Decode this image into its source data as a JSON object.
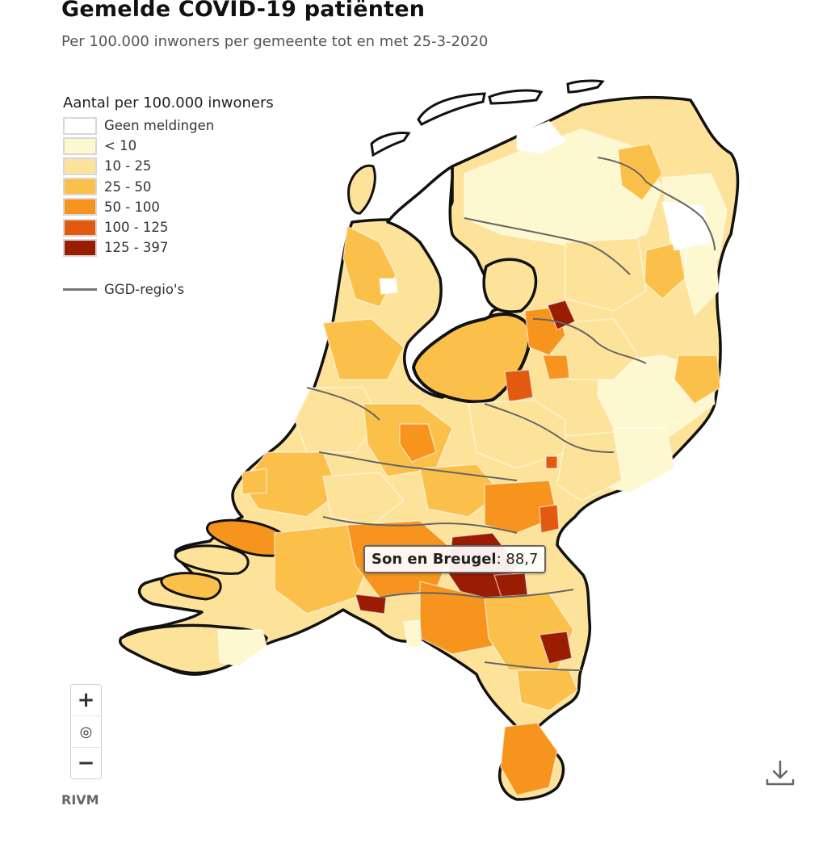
{
  "title": "Gemelde COVID-19 patiënten",
  "subtitle": "Per 100.000 inwoners per gemeente tot en met 25-3-2020",
  "legend": {
    "title": "Aantal per 100.000 inwoners",
    "items": [
      {
        "label": "Geen meldingen",
        "color": "#ffffff"
      },
      {
        "label": "< 10",
        "color": "#fdf8d0"
      },
      {
        "label": "10 - 25",
        "color": "#fde39a"
      },
      {
        "label": "25 - 50",
        "color": "#fbc04a"
      },
      {
        "label": "50 - 100",
        "color": "#f7941e"
      },
      {
        "label": "100 - 125",
        "color": "#e15a0f"
      },
      {
        "label": "125 - 397",
        "color": "#9a1c03"
      }
    ],
    "boundary_label": "GGD-regio's",
    "boundary_color": "#777777"
  },
  "tooltip": {
    "name": "Son en Breugel",
    "value": ": 88,7"
  },
  "zoom": {
    "in": "+",
    "reset": "◎",
    "out": "−"
  },
  "credit": "RIVM",
  "icons": {
    "download": "download-icon",
    "zoom_reset": "target-icon"
  }
}
